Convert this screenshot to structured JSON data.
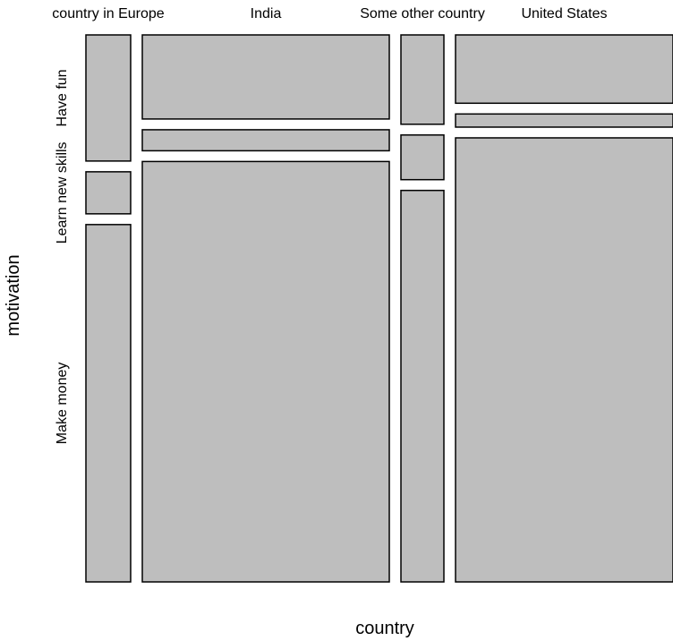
{
  "chart_data": {
    "type": "mosaic",
    "x_title": "country",
    "y_title": "motivation",
    "categories": [
      "country in Europe",
      "India",
      "Some other country",
      "United States"
    ],
    "rows": [
      "Have fun",
      "Learn new skills",
      "Make money"
    ],
    "column_widths_rel": [
      50,
      276,
      48,
      243
    ],
    "proportions": [
      [
        0.24,
        0.08,
        0.68
      ],
      [
        0.16,
        0.04,
        0.8
      ],
      [
        0.17,
        0.085,
        0.745
      ],
      [
        0.13,
        0.025,
        0.845
      ]
    ],
    "fill_color": "#bebebe",
    "stroke_color": "#000000",
    "background": "#ffffff"
  }
}
